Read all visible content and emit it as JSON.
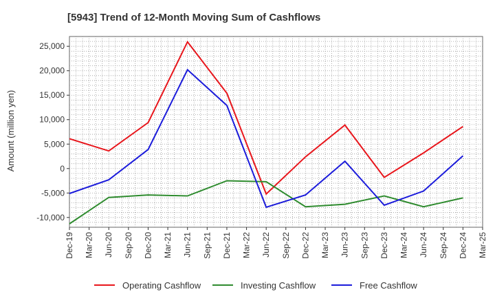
{
  "chart_data": {
    "type": "line",
    "title": "[5943]  Trend of 12-Month Moving Sum of Cashflows",
    "ylabel": "Amount (million yen)",
    "xlabel": "",
    "x_ticks": [
      "Dec-19",
      "Mar-20",
      "Jun-20",
      "Sep-20",
      "Dec-20",
      "Mar-21",
      "Jun-21",
      "Sep-21",
      "Dec-21",
      "Mar-22",
      "Jun-22",
      "Sep-22",
      "Dec-22",
      "Mar-23",
      "Jun-23",
      "Sep-23",
      "Dec-23",
      "Mar-24",
      "Jun-24",
      "Sep-24",
      "Dec-24",
      "Mar-25"
    ],
    "y_ticks": [
      -10000,
      -5000,
      0,
      5000,
      10000,
      15000,
      20000,
      25000
    ],
    "y_tick_labels": [
      "-10,000",
      "-5,000",
      "0",
      "5,000",
      "10,000",
      "15,000",
      "20,000",
      "25,000"
    ],
    "ylim": [
      -12000,
      27000
    ],
    "grid": true,
    "legend_position": "bottom",
    "x": [
      "Dec-19",
      "Jun-20",
      "Dec-20",
      "Jun-21",
      "Dec-21",
      "Jun-22",
      "Dec-22",
      "Jun-23",
      "Dec-23",
      "Jun-24",
      "Dec-24"
    ],
    "series": [
      {
        "name": "Operating Cashflow",
        "color": "#e8151b",
        "values": [
          6100,
          3600,
          9400,
          25900,
          15400,
          -5200,
          2400,
          8900,
          -1800,
          3200,
          8600
        ]
      },
      {
        "name": "Investing Cashflow",
        "color": "#2e8b2e",
        "values": [
          -11300,
          -5900,
          -5400,
          -5600,
          -2500,
          -2700,
          -7800,
          -7300,
          -5600,
          -7800,
          -6000
        ]
      },
      {
        "name": "Free Cashflow",
        "color": "#1b1bdb",
        "values": [
          -5100,
          -2300,
          3900,
          20200,
          12900,
          -7900,
          -5400,
          1500,
          -7500,
          -4600,
          2600
        ]
      }
    ]
  }
}
